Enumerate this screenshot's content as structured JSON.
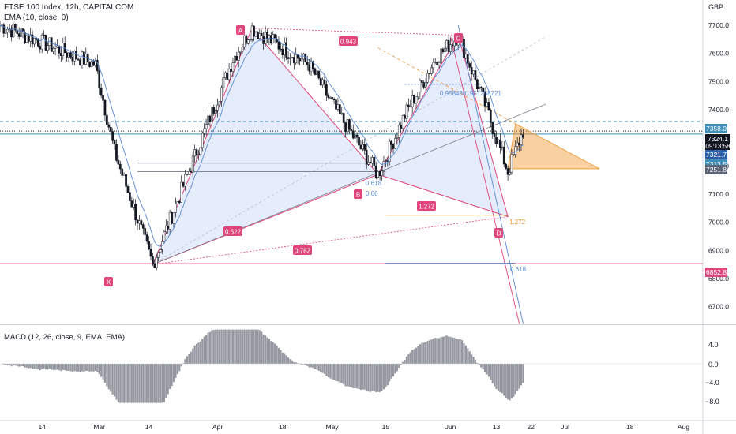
{
  "header": {
    "symbol_line": "FTSE 100 Index, 12h, CAPITALCOM",
    "ema_line": "EMA (10, close, 0)",
    "currency": "GBP"
  },
  "macd_panel": {
    "label": "MACD (12, 26, close, 9, EMA, EMA)",
    "ticks": [
      "4.0",
      "0.0",
      "−4.0",
      "−8.0"
    ]
  },
  "price_badges": {
    "resistance": "7358.0",
    "last": "7324.1",
    "countdown": "09:13:58",
    "ema": "7321.7",
    "level_b": "7313.5",
    "level_c": "7251.8",
    "support": "6852.8"
  },
  "pattern": {
    "points": [
      {
        "label": "X",
        "date": "2023-03-15",
        "price": 6850
      },
      {
        "label": "A",
        "date": "2023-04-10",
        "price": 7690
      },
      {
        "label": "B",
        "date": "2023-05-13",
        "price": 7170
      },
      {
        "label": "C",
        "date": "2023-06-03",
        "price": 7665
      },
      {
        "label": "D",
        "date": "2023-06-16",
        "price": 7020
      }
    ],
    "ratios": {
      "xb": "0.622",
      "ac": "0.943",
      "bd": "1.272",
      "xd": "0.782",
      "ab_fib": "0.9584861951258721"
    },
    "level_labels": {
      "b_618": "0.618",
      "b_66": "0.66",
      "d_1272": "1.272",
      "d_618": "0.618"
    }
  },
  "chart_data": {
    "type": "candlestick",
    "title": "FTSE 100 Index, 12h, CAPITALCOM",
    "currency": "GBP",
    "price_axis": {
      "ticks": [
        7700,
        7600,
        7500,
        7400,
        7300,
        7200,
        7100,
        7000,
        6900,
        6800,
        6700
      ],
      "range": [
        6640,
        7790
      ]
    },
    "time_axis": {
      "labels": [
        "14",
        "Mar",
        "14",
        "Apr",
        "18",
        "May",
        "15",
        "Jun",
        "13",
        "22",
        "Jul",
        "18",
        "Aug"
      ]
    },
    "horizontal_levels": [
      7358.0,
      7324.1,
      7321.7,
      7313.5,
      7251.8,
      6852.8
    ],
    "series": [
      {
        "name": "FTSE 100 Index",
        "approx_close_path": [
          {
            "date": "2023-02-03",
            "price": 7700
          },
          {
            "date": "2023-02-14",
            "price": 7640
          },
          {
            "date": "2023-02-28",
            "price": 7560
          },
          {
            "date": "2023-03-05",
            "price": 7250
          },
          {
            "date": "2023-03-10",
            "price": 7050
          },
          {
            "date": "2023-03-15",
            "price": 6850
          },
          {
            "date": "2023-03-25",
            "price": 7200
          },
          {
            "date": "2023-04-05",
            "price": 7580
          },
          {
            "date": "2023-04-10",
            "price": 7690
          },
          {
            "date": "2023-04-18",
            "price": 7620
          },
          {
            "date": "2023-04-25",
            "price": 7560
          },
          {
            "date": "2023-05-01",
            "price": 7420
          },
          {
            "date": "2023-05-13",
            "price": 7170
          },
          {
            "date": "2023-05-20",
            "price": 7380
          },
          {
            "date": "2023-05-28",
            "price": 7580
          },
          {
            "date": "2023-06-03",
            "price": 7665
          },
          {
            "date": "2023-06-10",
            "price": 7420
          },
          {
            "date": "2023-06-16",
            "price": 7180
          },
          {
            "date": "2023-06-20",
            "price": 7324
          }
        ]
      },
      {
        "name": "EMA (10, close, 0)",
        "last": 7321.7
      }
    ],
    "macd": {
      "label": "MACD (12, 26, close, 9, EMA, EMA)",
      "ticks": [
        4.0,
        0.0,
        -4.0,
        -8.0
      ]
    }
  }
}
